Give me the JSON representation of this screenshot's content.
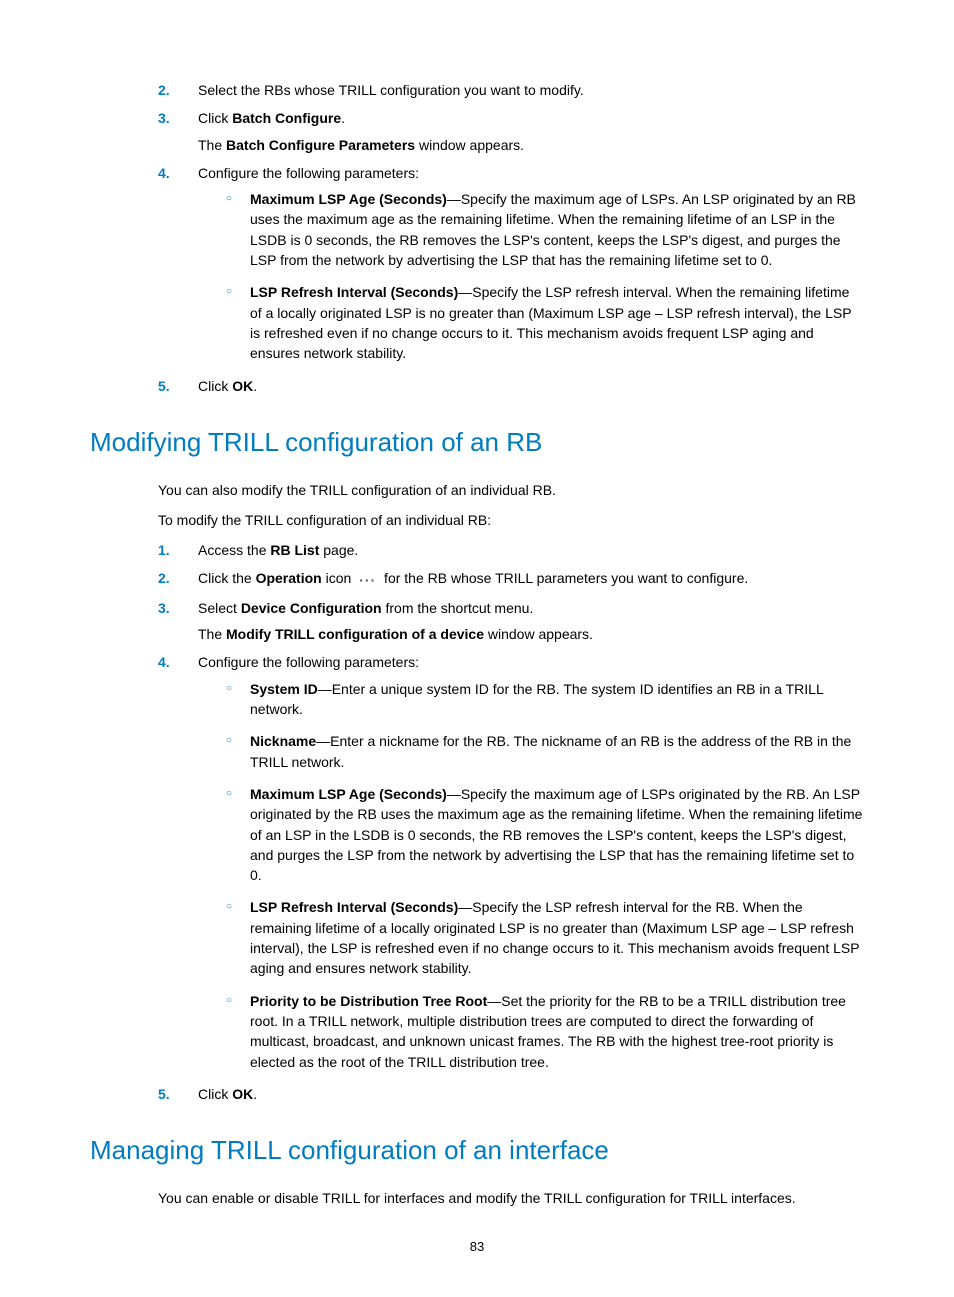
{
  "page_number": "83",
  "steps1": [
    {
      "n": "2.",
      "text": "Select the RBs whose TRILL configuration you want to modify."
    },
    {
      "n": "3.",
      "pre": "Click ",
      "bold": "Batch Configure",
      "post": ".",
      "sub_pre": "The ",
      "sub_bold": "Batch Configure Parameters",
      "sub_post": " window appears."
    },
    {
      "n": "4.",
      "text": "Configure the following parameters:",
      "bullets": [
        {
          "bold": "Maximum LSP Age (Seconds)",
          "text": "—Specify the maximum age of LSPs. An LSP originated by an RB uses the maximum age as the remaining lifetime. When the remaining lifetime of an LSP in the LSDB is 0 seconds, the RB removes the LSP's content, keeps the LSP's digest, and purges the LSP from the network by advertising the LSP that has the remaining lifetime set to 0."
        },
        {
          "bold": "LSP Refresh Interval (Seconds)",
          "text": "—Specify the LSP refresh interval. When the remaining lifetime of a locally originated LSP is no greater than (Maximum LSP age – LSP refresh interval), the LSP is refreshed even if no change occurs to it. This mechanism avoids frequent LSP aging and ensures network stability."
        }
      ]
    },
    {
      "n": "5.",
      "pre": "Click ",
      "bold": "OK",
      "post": "."
    }
  ],
  "section1_title": "Modifying TRILL configuration of an RB",
  "section1_intro1": "You can also modify the TRILL configuration of an individual RB.",
  "section1_intro2": "To modify the TRILL configuration of an individual RB:",
  "steps2": [
    {
      "n": "1.",
      "pre": "Access the ",
      "bold": "RB List",
      "post": " page."
    },
    {
      "n": "2.",
      "pre": "Click the ",
      "bold": "Operation",
      "post_pre": " icon ",
      "icon": "more-horizontal-icon",
      "post": " for the RB whose TRILL parameters you want to configure."
    },
    {
      "n": "3.",
      "pre": "Select ",
      "bold": "Device Configuration",
      "post": " from the shortcut menu.",
      "sub_pre": "The ",
      "sub_bold": "Modify TRILL configuration of a device",
      "sub_post": " window appears."
    },
    {
      "n": "4.",
      "text": "Configure the following parameters:",
      "bullets": [
        {
          "bold": "System ID",
          "text": "—Enter a unique system ID for the RB. The system ID identifies an RB in a TRILL network."
        },
        {
          "bold": "Nickname",
          "text": "—Enter a nickname for the RB. The nickname of an RB is the address of the RB in the TRILL network."
        },
        {
          "bold": "Maximum LSP Age (Seconds)",
          "text": "—Specify the maximum age of LSPs originated by the RB. An LSP originated by the RB uses the maximum age as the remaining lifetime. When the remaining lifetime of an LSP in the LSDB is 0 seconds, the RB removes the LSP's content, keeps the LSP's digest, and purges the LSP from the network by advertising the LSP that has the remaining lifetime set to 0."
        },
        {
          "bold": "LSP Refresh Interval (Seconds)",
          "text": "—Specify the LSP refresh interval for the RB. When the remaining lifetime of a locally originated LSP is no greater than (Maximum LSP age – LSP refresh interval), the LSP is refreshed even if no change occurs to it. This mechanism avoids frequent LSP aging and ensures network stability."
        },
        {
          "bold": "Priority to be Distribution Tree Root",
          "text": "—Set the priority for the RB to be a TRILL distribution tree root. In a TRILL network, multiple distribution trees are computed to direct the forwarding of multicast, broadcast, and unknown unicast frames. The RB with the highest tree-root priority is elected as the root of the TRILL distribution tree."
        }
      ]
    },
    {
      "n": "5.",
      "pre": "Click ",
      "bold": "OK",
      "post": "."
    }
  ],
  "section2_title": "Managing TRILL configuration of an interface",
  "section2_intro": "You can enable or disable TRILL for interfaces and modify the TRILL configuration for TRILL interfaces."
}
